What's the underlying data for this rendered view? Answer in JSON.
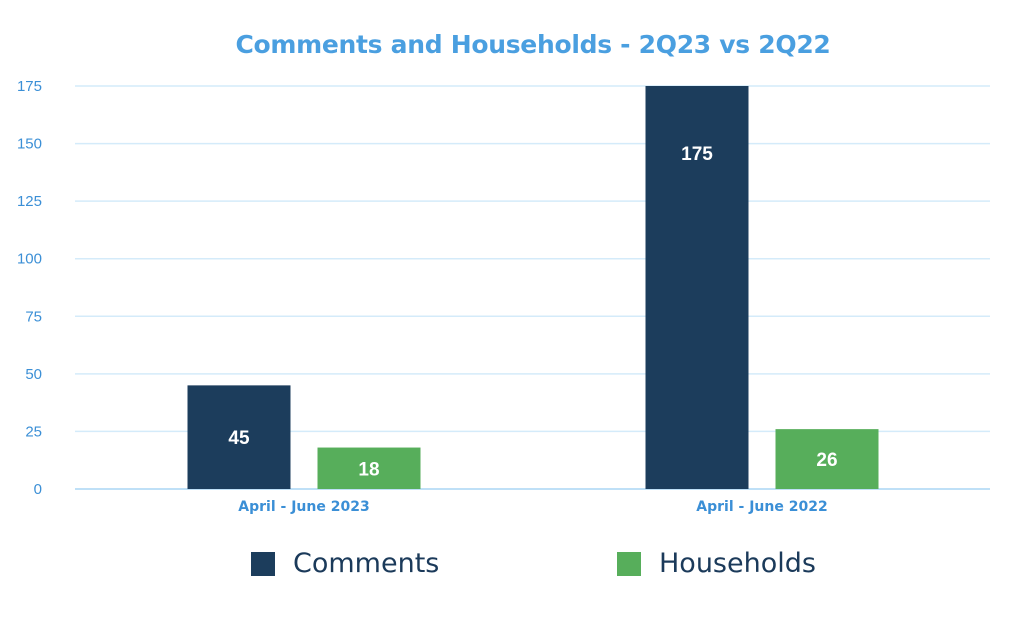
{
  "chart_data": {
    "type": "bar",
    "title": "Comments and Households - 2Q23 vs 2Q22",
    "categories": [
      "April - June 2023",
      "April - June 2022"
    ],
    "series": [
      {
        "name": "Comments",
        "values": [
          45,
          175
        ],
        "color": "#1c3d5c"
      },
      {
        "name": "Households",
        "values": [
          18,
          26
        ],
        "color": "#57ae5b"
      }
    ],
    "ylim": [
      0,
      175
    ],
    "yticks": [
      0,
      25,
      50,
      75,
      100,
      125,
      150,
      175
    ],
    "grid": true,
    "legend": "bottom",
    "label_color": "#3b8fd6",
    "title_color": "#4a9fe0"
  }
}
